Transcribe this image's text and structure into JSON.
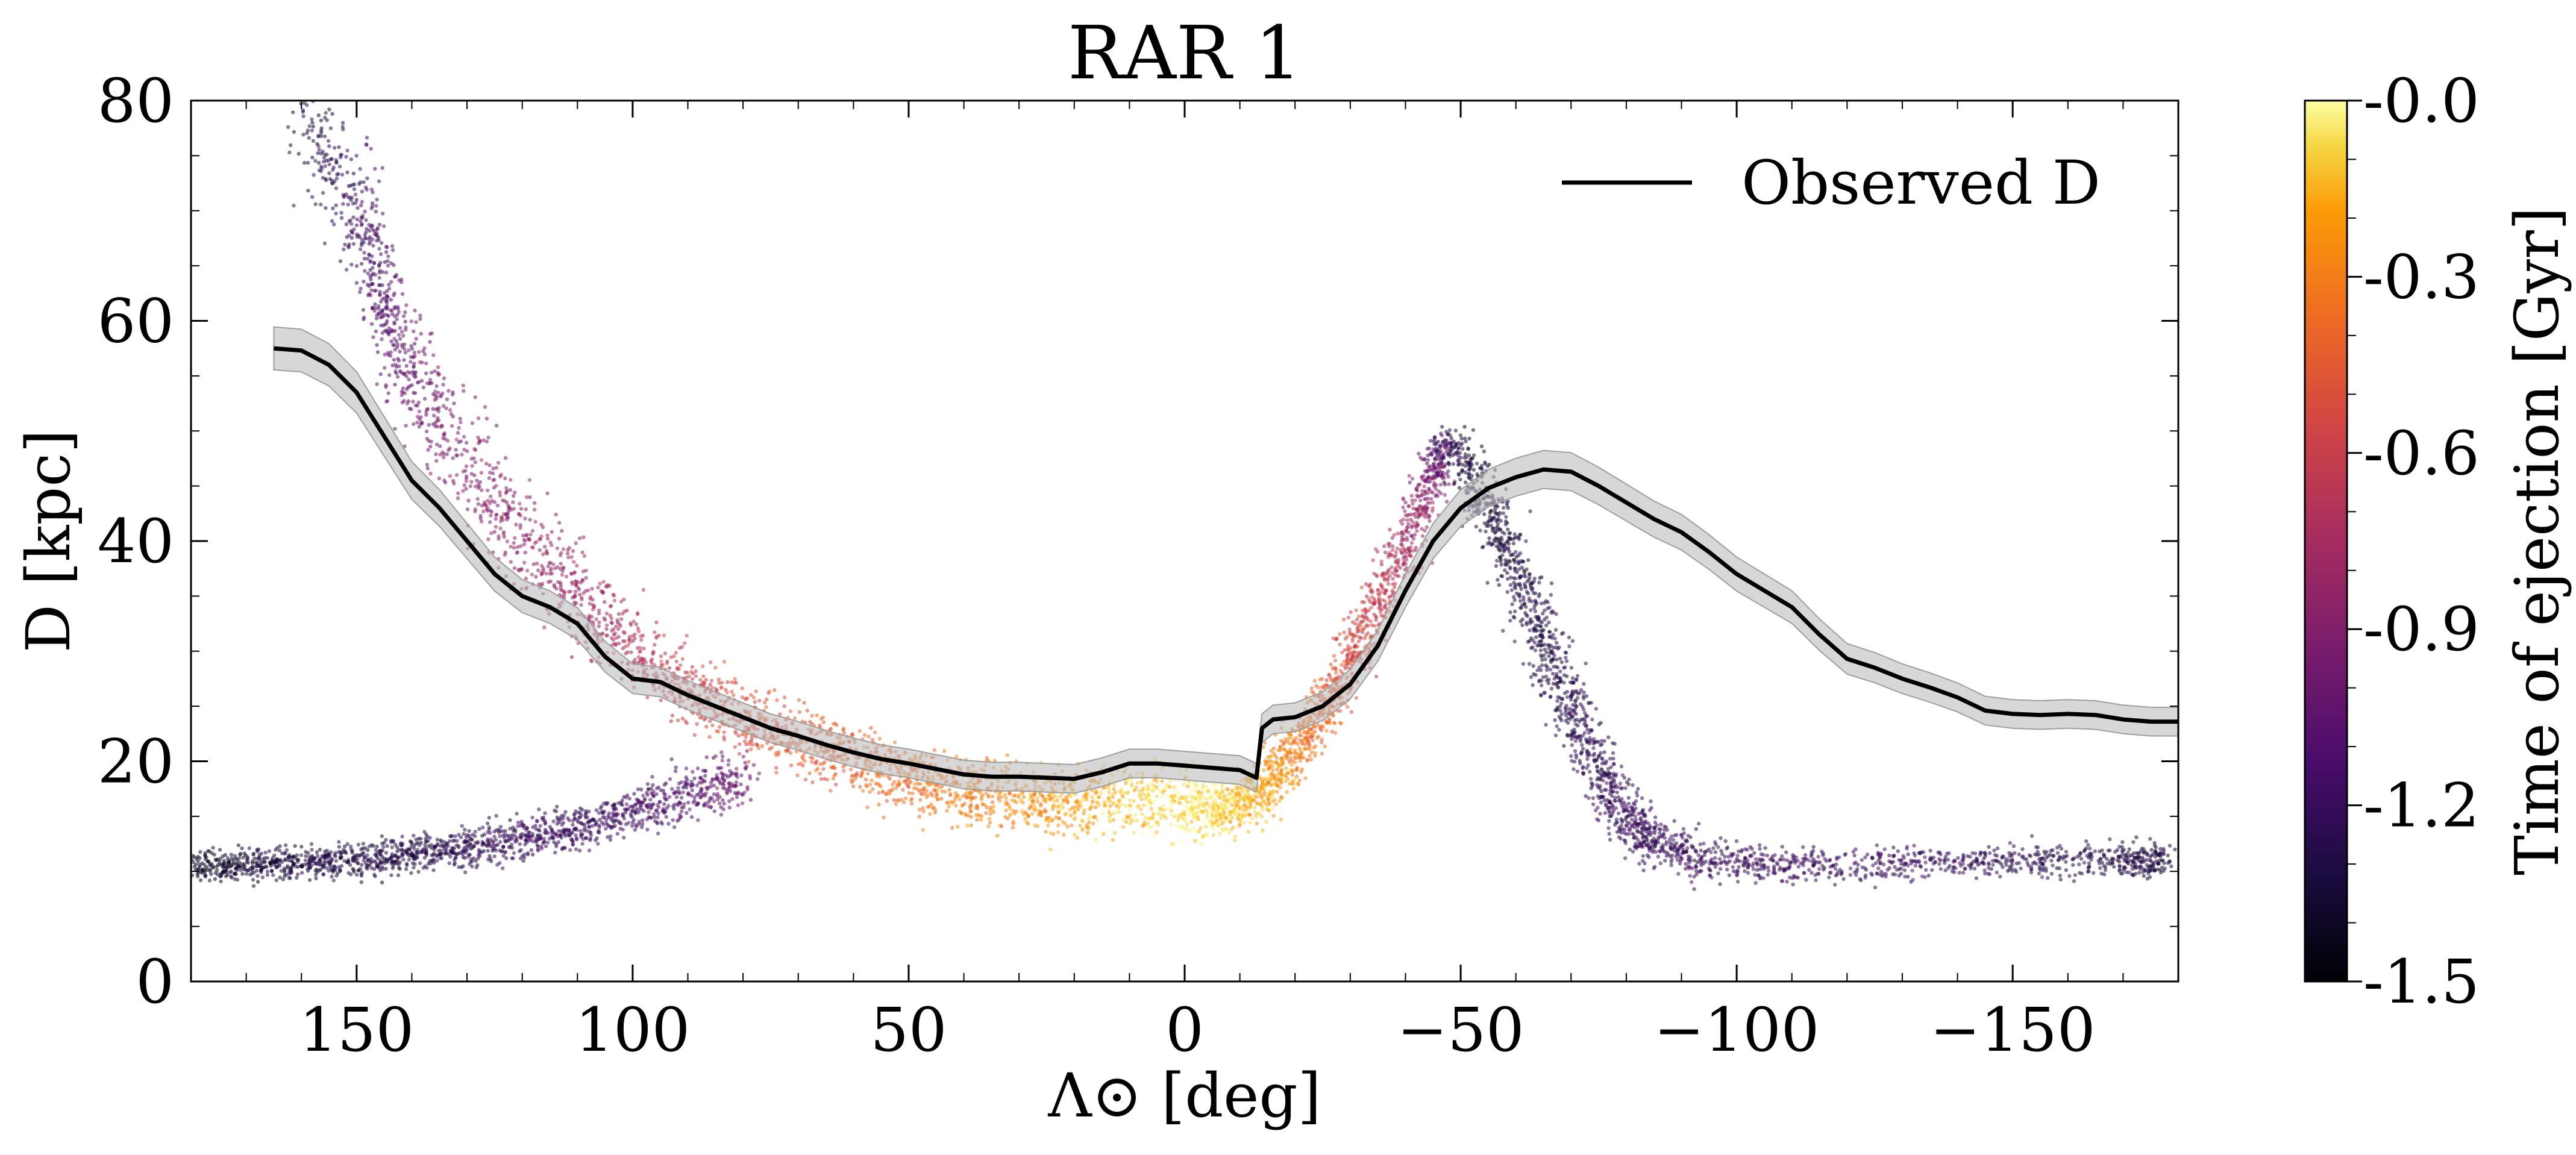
{
  "chart_data": {
    "type": "scatter",
    "title": "RAR 1",
    "xlabel": "Λ⊙ [deg]",
    "ylabel": "D [kpc]",
    "xlim": [
      180,
      -180
    ],
    "ylim": [
      0,
      80
    ],
    "x_ticks": [
      150,
      100,
      50,
      0,
      -50,
      -100,
      -150
    ],
    "x_tick_labels": [
      "150",
      "100",
      "50",
      "0",
      "−50",
      "−100",
      "−150"
    ],
    "y_ticks": [
      0,
      20,
      40,
      60,
      80
    ],
    "y_tick_labels": [
      "0",
      "20",
      "40",
      "60",
      "80"
    ],
    "grid": false,
    "legend": {
      "position": "top-right",
      "entries": [
        "Observed D"
      ]
    },
    "colorbar": {
      "label": "Time of ejection [Gyr]",
      "range": [
        -1.5,
        0.0
      ],
      "colormap": "inferno",
      "ticks": [
        -1.5,
        -1.2,
        -0.9,
        -0.6,
        -0.3,
        -0.0
      ],
      "tick_labels": [
        "-1.5",
        "-1.2",
        "-0.9",
        "-0.6",
        "-0.3",
        "-0.0"
      ]
    },
    "series": [
      {
        "name": "Observed D",
        "kind": "line",
        "color": "#000000",
        "band_color": "#bdbdbd",
        "points": [
          [
            165,
            57.5
          ],
          [
            160,
            57.3
          ],
          [
            155,
            56.0
          ],
          [
            150,
            53.5
          ],
          [
            145,
            49.5
          ],
          [
            140,
            45.5
          ],
          [
            135,
            43.0
          ],
          [
            130,
            40.0
          ],
          [
            125,
            37.0
          ],
          [
            120,
            35.0
          ],
          [
            115,
            34.0
          ],
          [
            110,
            32.5
          ],
          [
            105,
            29.5
          ],
          [
            100,
            27.5
          ],
          [
            95,
            27.2
          ],
          [
            90,
            26.0
          ],
          [
            85,
            25.0
          ],
          [
            80,
            24.0
          ],
          [
            75,
            23.0
          ],
          [
            70,
            22.3
          ],
          [
            65,
            21.5
          ],
          [
            60,
            20.8
          ],
          [
            55,
            20.2
          ],
          [
            50,
            19.8
          ],
          [
            45,
            19.3
          ],
          [
            40,
            18.8
          ],
          [
            35,
            18.6
          ],
          [
            30,
            18.6
          ],
          [
            25,
            18.5
          ],
          [
            20,
            18.4
          ],
          [
            15,
            19.0
          ],
          [
            10,
            19.8
          ],
          [
            5,
            19.8
          ],
          [
            0,
            19.6
          ],
          [
            -5,
            19.4
          ],
          [
            -10,
            19.2
          ],
          [
            -13,
            18.5
          ],
          [
            -14,
            23.0
          ],
          [
            -16,
            23.8
          ],
          [
            -20,
            24.0
          ],
          [
            -25,
            25.0
          ],
          [
            -30,
            27.0
          ],
          [
            -35,
            30.5
          ],
          [
            -40,
            35.5
          ],
          [
            -45,
            40.0
          ],
          [
            -50,
            43.0
          ],
          [
            -55,
            44.8
          ],
          [
            -60,
            45.8
          ],
          [
            -65,
            46.5
          ],
          [
            -70,
            46.3
          ],
          [
            -75,
            45.0
          ],
          [
            -80,
            43.5
          ],
          [
            -85,
            42.0
          ],
          [
            -90,
            40.8
          ],
          [
            -95,
            39.0
          ],
          [
            -100,
            37.0
          ],
          [
            -105,
            35.5
          ],
          [
            -110,
            34.0
          ],
          [
            -115,
            31.5
          ],
          [
            -120,
            29.3
          ],
          [
            -125,
            28.5
          ],
          [
            -130,
            27.5
          ],
          [
            -135,
            26.7
          ],
          [
            -140,
            25.8
          ],
          [
            -145,
            24.6
          ],
          [
            -150,
            24.3
          ],
          [
            -155,
            24.2
          ],
          [
            -160,
            24.3
          ],
          [
            -165,
            24.2
          ],
          [
            -170,
            23.8
          ],
          [
            -175,
            23.6
          ],
          [
            -180,
            23.6
          ]
        ]
      },
      {
        "name": "",
        "kind": "scatter",
        "note_stream": "leading arm (x, y_center, y_spread, time_Gyr)",
        "stream": [
          [
            180,
            10.5,
            1.2,
            -1.4
          ],
          [
            170,
            10.5,
            1.2,
            -1.35
          ],
          [
            160,
            10.8,
            1.2,
            -1.3
          ],
          [
            150,
            11.0,
            1.2,
            -1.3
          ],
          [
            140,
            11.5,
            1.3,
            -1.3
          ],
          [
            130,
            12.2,
            1.4,
            -1.25
          ],
          [
            120,
            13.0,
            1.5,
            -1.2
          ],
          [
            110,
            14.0,
            1.6,
            -1.2
          ],
          [
            100,
            15.5,
            1.8,
            -1.15
          ],
          [
            90,
            17.0,
            2.0,
            -1.1
          ],
          [
            80,
            18.5,
            2.0,
            -1.0
          ]
        ]
      },
      {
        "name": "",
        "kind": "scatter",
        "note_stream": "trailing arm / main debris (x, y_center, y_spread, time_Gyr)",
        "stream": [
          [
            160,
            78.0,
            4.0,
            -1.3
          ],
          [
            150,
            70.0,
            5.0,
            -1.2
          ],
          [
            145,
            62.0,
            5.0,
            -1.1
          ],
          [
            140,
            55.0,
            5.0,
            -1.0
          ],
          [
            130,
            47.0,
            4.5,
            -0.9
          ],
          [
            120,
            40.0,
            4.0,
            -0.85
          ],
          [
            110,
            35.0,
            3.5,
            -0.8
          ],
          [
            100,
            30.0,
            3.0,
            -0.7
          ],
          [
            90,
            26.5,
            2.5,
            -0.6
          ],
          [
            80,
            24.0,
            2.5,
            -0.5
          ],
          [
            70,
            22.0,
            2.5,
            -0.45
          ],
          [
            60,
            20.0,
            2.5,
            -0.4
          ],
          [
            50,
            18.5,
            2.5,
            -0.35
          ],
          [
            40,
            17.0,
            2.5,
            -0.3
          ],
          [
            30,
            16.5,
            2.5,
            -0.25
          ],
          [
            20,
            16.0,
            2.5,
            -0.2
          ],
          [
            10,
            16.5,
            2.5,
            -0.1
          ],
          [
            0,
            16.5,
            2.5,
            -0.05
          ],
          [
            -5,
            15.5,
            2.0,
            -0.05
          ],
          [
            -10,
            16.0,
            2.0,
            -0.1
          ],
          [
            -15,
            18.0,
            2.0,
            -0.2
          ],
          [
            -20,
            21.0,
            2.0,
            -0.3
          ],
          [
            -25,
            24.5,
            2.0,
            -0.4
          ],
          [
            -30,
            29.0,
            2.0,
            -0.5
          ],
          [
            -35,
            34.0,
            2.0,
            -0.6
          ],
          [
            -40,
            40.0,
            2.0,
            -0.75
          ],
          [
            -45,
            46.0,
            2.0,
            -0.9
          ],
          [
            -48,
            49.0,
            1.5,
            -1.3
          ]
        ]
      },
      {
        "name": "",
        "kind": "scatter",
        "note_stream": "descending branch (x, y_center, y_spread, time_Gyr)",
        "stream": [
          [
            -50,
            48.0,
            2.0,
            -1.35
          ],
          [
            -55,
            43.0,
            2.5,
            -1.35
          ],
          [
            -60,
            37.0,
            3.0,
            -1.3
          ],
          [
            -65,
            31.0,
            3.0,
            -1.3
          ],
          [
            -70,
            25.0,
            3.0,
            -1.25
          ],
          [
            -75,
            19.0,
            3.0,
            -1.25
          ],
          [
            -80,
            15.0,
            2.5,
            -1.2
          ],
          [
            -85,
            12.5,
            2.0,
            -1.2
          ],
          [
            -95,
            11.0,
            1.5,
            -1.2
          ],
          [
            -110,
            10.5,
            1.2,
            -1.2
          ],
          [
            -130,
            10.8,
            1.2,
            -1.2
          ],
          [
            -150,
            11.0,
            1.2,
            -1.25
          ],
          [
            -170,
            11.0,
            1.2,
            -1.3
          ],
          [
            -178,
            11.0,
            1.2,
            -1.3
          ]
        ]
      }
    ]
  }
}
